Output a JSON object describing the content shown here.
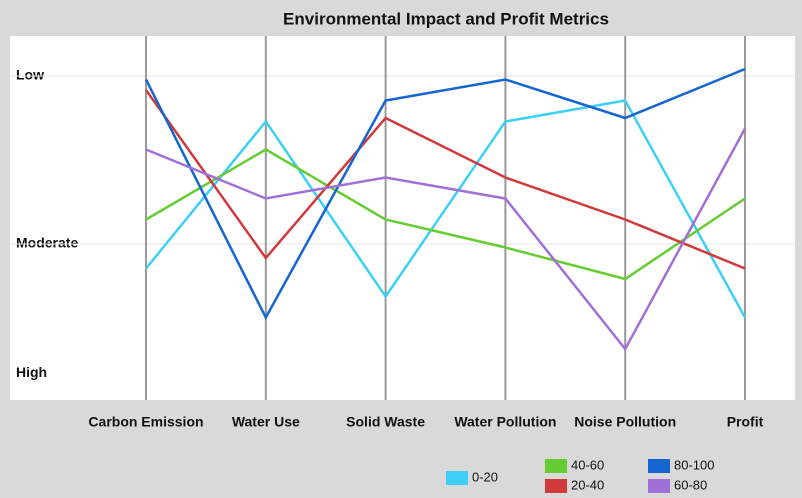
{
  "chart_data": {
    "type": "parallel",
    "title": "Environmental Impact and Profit Metrics",
    "categories": [
      "Carbon Emission",
      "Water Use",
      "Solid Waste",
      "Water Pollution",
      "Noise Pollution",
      "Profit"
    ],
    "ylim": [
      0,
      100
    ],
    "yticks": [
      {
        "value": 7,
        "label": "High"
      },
      {
        "value": 44,
        "label": "Moderate"
      },
      {
        "value": 92,
        "label": "Low"
      }
    ],
    "grid": true,
    "series": [
      {
        "name": "0-20",
        "color": "#3cd0f8",
        "values": [
          37,
          79,
          29,
          79,
          85,
          23
        ]
      },
      {
        "name": "40-60",
        "color": "#66cc33",
        "values": [
          51,
          71,
          51,
          43,
          34,
          57
        ]
      },
      {
        "name": "20-40",
        "color": "#d03a3a",
        "values": [
          88,
          40,
          80,
          63,
          51,
          37
        ]
      },
      {
        "name": "80-100",
        "color": "#1566d0",
        "values": [
          91,
          23,
          85,
          91,
          80,
          94
        ]
      },
      {
        "name": "60-80",
        "color": "#a070d8",
        "values": [
          71,
          57,
          63,
          57,
          14,
          77
        ]
      }
    ]
  }
}
